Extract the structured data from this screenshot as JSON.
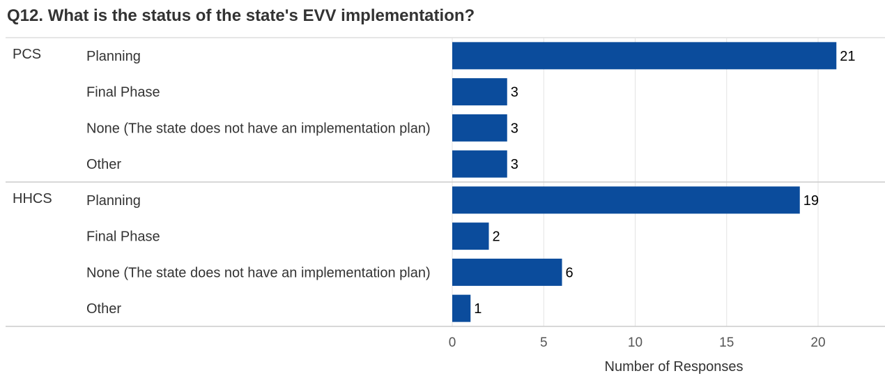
{
  "title": "Q12. What is the status of the state's EVV implementation?",
  "colors": {
    "bar": "#0b4c9c",
    "grid": "#e3e3e3",
    "divider": "#cccccc",
    "text": "#333333",
    "axis_text": "#555555"
  },
  "chart_data": {
    "type": "bar",
    "orientation": "horizontal",
    "title": "Q12. What is the status of the state's EVV implementation?",
    "xlabel": "Number of Responses",
    "ylabel": "",
    "xlim": [
      0,
      22
    ],
    "xticks": [
      0,
      5,
      10,
      15,
      20
    ],
    "grid": true,
    "groups": [
      {
        "name": "PCS",
        "categories": [
          "Planning",
          "Final Phase",
          "None (The state does not have an implementation plan)",
          "Other"
        ],
        "values": [
          21,
          3,
          3,
          3
        ]
      },
      {
        "name": "HHCS",
        "categories": [
          "Planning",
          "Final Phase",
          "None (The state does not have an implementation plan)",
          "Other"
        ],
        "values": [
          19,
          2,
          6,
          1
        ]
      }
    ]
  }
}
